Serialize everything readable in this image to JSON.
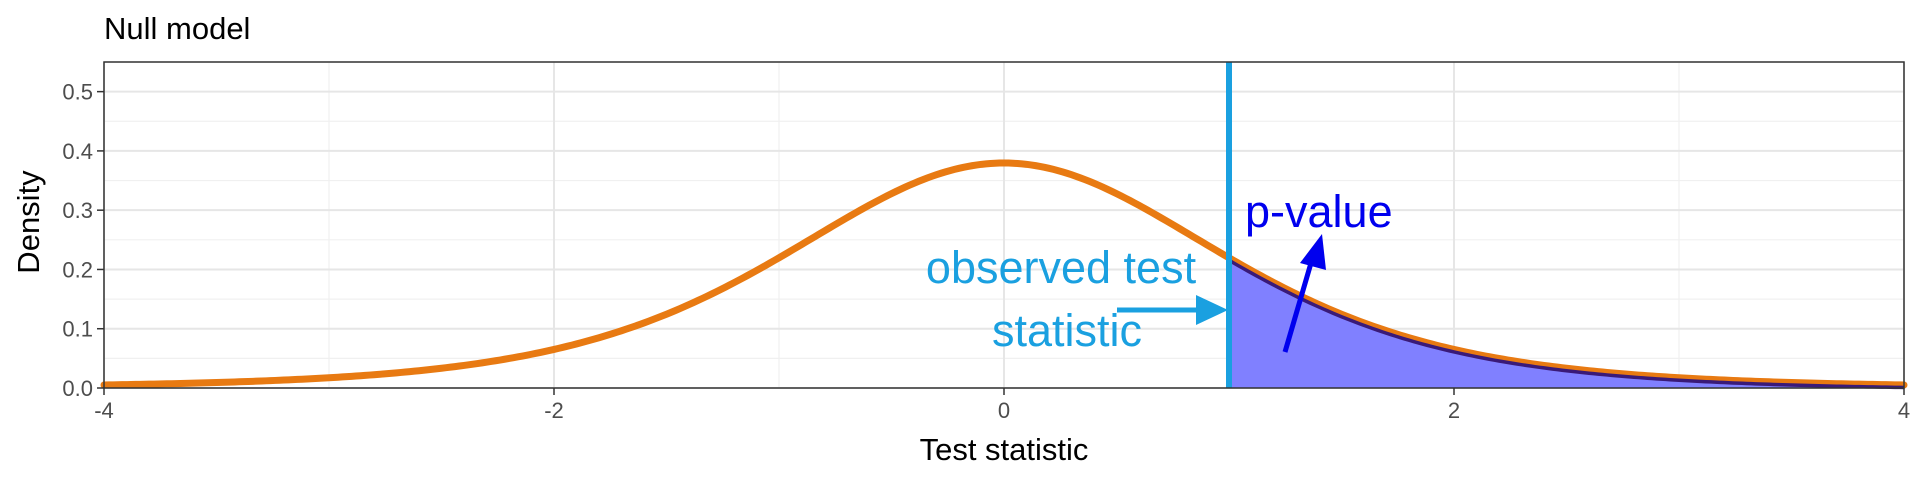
{
  "chart_data": {
    "type": "area",
    "title": "Null model",
    "xlabel": "Test statistic",
    "ylabel": "Density",
    "xlim": [
      -4,
      4
    ],
    "ylim": [
      0,
      0.55
    ],
    "x_ticks": [
      -4,
      -2,
      0,
      2,
      4
    ],
    "x_tick_labels": [
      "-4",
      "-2",
      "0",
      "2",
      "4"
    ],
    "y_ticks": [
      0.0,
      0.1,
      0.2,
      0.3,
      0.4,
      0.5
    ],
    "y_tick_labels": [
      "0.0",
      "0.1",
      "0.2",
      "0.3",
      "0.4",
      "0.5"
    ],
    "grid": true,
    "series": [
      {
        "distribution": "t",
        "df": 5,
        "color": "#E87A12",
        "x": [
          -4,
          -3.5,
          -3,
          -2.5,
          -2,
          -1.5,
          -1,
          -0.5,
          0,
          0.5,
          1,
          1.5,
          2,
          2.5,
          3,
          3.5,
          4
        ],
        "values": [
          0.0051,
          0.0098,
          0.0173,
          0.0338,
          0.0651,
          0.1245,
          0.2197,
          0.3279,
          0.3796,
          0.3279,
          0.2197,
          0.1245,
          0.0651,
          0.0338,
          0.0173,
          0.0098,
          0.0051
        ]
      }
    ],
    "observed_statistic": 1,
    "observed_color": "#1AA0E0",
    "shaded_region": {
      "from": 1,
      "to": 4,
      "fill": "#8080FF",
      "edge": "#3A1A78"
    },
    "annotations": [
      {
        "lines": [
          "observed test",
          "statistic"
        ],
        "color": "#1AA0E0",
        "position": "left-of-line"
      },
      {
        "lines": [
          "p-value"
        ],
        "color": "#0000EE",
        "position": "upper-right-of-line"
      }
    ]
  }
}
